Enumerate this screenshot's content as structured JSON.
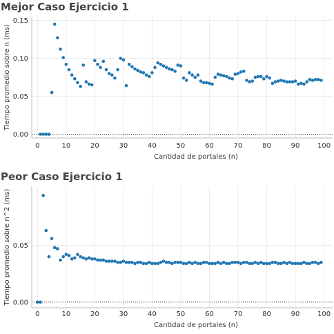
{
  "colors": {
    "point": "#1f77b4",
    "grid": "#ebebeb",
    "zero_line": "#333333",
    "axis": "#bbbbbb"
  },
  "chart_data": [
    {
      "type": "scatter",
      "title": "Mejor Caso Ejercicio 1",
      "xlabel": "Cantidad de portales (n)",
      "ylabel": "Tiempo promedio sobre n (ms)",
      "xlim": [
        -2,
        103
      ],
      "ylim": [
        -0.005,
        0.155
      ],
      "xticks": [
        0,
        10,
        20,
        30,
        40,
        50,
        60,
        70,
        80,
        90,
        100
      ],
      "yticks": [
        0.0,
        0.05,
        0.1,
        0.15
      ],
      "ytick_labels": [
        "0.00",
        "0.05",
        "0.10",
        "0.15"
      ],
      "zero_line": "dotted",
      "grid": true,
      "x": [
        1,
        2,
        3,
        4,
        5,
        6,
        7,
        8,
        9,
        10,
        11,
        12,
        13,
        14,
        15,
        16,
        17,
        18,
        19,
        20,
        21,
        22,
        23,
        24,
        25,
        26,
        27,
        28,
        29,
        30,
        31,
        32,
        33,
        34,
        35,
        36,
        37,
        38,
        39,
        40,
        41,
        42,
        43,
        44,
        45,
        46,
        47,
        48,
        49,
        50,
        51,
        52,
        53,
        54,
        55,
        56,
        57,
        58,
        59,
        60,
        61,
        62,
        63,
        64,
        65,
        66,
        67,
        68,
        69,
        70,
        71,
        72,
        73,
        74,
        75,
        76,
        77,
        78,
        79,
        80,
        81,
        82,
        83,
        84,
        85,
        86,
        87,
        88,
        89,
        90,
        91,
        92,
        93,
        94,
        95,
        96,
        97,
        98,
        99
      ],
      "y": [
        0.0,
        0.0,
        0.0,
        0.0,
        0.055,
        0.145,
        0.127,
        0.112,
        0.101,
        0.092,
        0.085,
        0.078,
        0.073,
        0.068,
        0.063,
        0.091,
        0.069,
        0.066,
        0.065,
        0.097,
        0.092,
        0.088,
        0.096,
        0.085,
        0.08,
        0.078,
        0.074,
        0.085,
        0.1,
        0.098,
        0.064,
        0.092,
        0.089,
        0.086,
        0.084,
        0.082,
        0.081,
        0.078,
        0.076,
        0.081,
        0.088,
        0.094,
        0.092,
        0.09,
        0.088,
        0.086,
        0.085,
        0.083,
        0.091,
        0.09,
        0.074,
        0.071,
        0.081,
        0.078,
        0.075,
        0.078,
        0.07,
        0.068,
        0.068,
        0.067,
        0.066,
        0.075,
        0.079,
        0.078,
        0.077,
        0.076,
        0.074,
        0.073,
        0.079,
        0.08,
        0.082,
        0.083,
        0.071,
        0.069,
        0.07,
        0.075,
        0.076,
        0.076,
        0.073,
        0.076,
        0.074,
        0.067,
        0.069,
        0.07,
        0.071,
        0.07,
        0.069,
        0.069,
        0.069,
        0.07,
        0.066,
        0.067,
        0.066,
        0.069,
        0.072,
        0.071,
        0.072,
        0.072,
        0.071
      ]
    },
    {
      "type": "scatter",
      "title": "Peor Caso Ejercicio 1",
      "xlabel": "Cantidad de portales (n)",
      "ylabel": "Tiempo promedio sobre n^2 (ms)",
      "xlim": [
        -2,
        103
      ],
      "ylim": [
        -0.005,
        0.102
      ],
      "xticks": [
        0,
        10,
        20,
        30,
        40,
        50,
        60,
        70,
        80,
        90,
        100
      ],
      "yticks": [
        0.0,
        0.05
      ],
      "ytick_labels": [
        "0.00",
        "0.05"
      ],
      "zero_line": "dotted",
      "grid": true,
      "x": [
        0,
        1,
        2,
        3,
        4,
        5,
        6,
        7,
        8,
        9,
        10,
        11,
        12,
        13,
        14,
        15,
        16,
        17,
        18,
        19,
        20,
        21,
        22,
        23,
        24,
        25,
        26,
        27,
        28,
        29,
        30,
        31,
        32,
        33,
        34,
        35,
        36,
        37,
        38,
        39,
        40,
        41,
        42,
        43,
        44,
        45,
        46,
        47,
        48,
        49,
        50,
        51,
        52,
        53,
        54,
        55,
        56,
        57,
        58,
        59,
        60,
        61,
        62,
        63,
        64,
        65,
        66,
        67,
        68,
        69,
        70,
        71,
        72,
        73,
        74,
        75,
        76,
        77,
        78,
        79,
        80,
        81,
        82,
        83,
        84,
        85,
        86,
        87,
        88,
        89,
        90,
        91,
        92,
        93,
        94,
        95,
        96,
        97,
        98,
        99
      ],
      "y": [
        0.0,
        0.0,
        0.094,
        0.063,
        0.04,
        0.056,
        0.048,
        0.047,
        0.037,
        0.04,
        0.042,
        0.041,
        0.038,
        0.039,
        0.042,
        0.04,
        0.039,
        0.038,
        0.039,
        0.038,
        0.038,
        0.037,
        0.037,
        0.037,
        0.036,
        0.036,
        0.036,
        0.036,
        0.035,
        0.035,
        0.036,
        0.035,
        0.035,
        0.035,
        0.034,
        0.035,
        0.035,
        0.034,
        0.034,
        0.035,
        0.034,
        0.034,
        0.034,
        0.035,
        0.036,
        0.035,
        0.035,
        0.034,
        0.035,
        0.035,
        0.035,
        0.034,
        0.034,
        0.035,
        0.034,
        0.035,
        0.034,
        0.034,
        0.035,
        0.035,
        0.034,
        0.034,
        0.034,
        0.035,
        0.034,
        0.035,
        0.034,
        0.034,
        0.035,
        0.035,
        0.035,
        0.034,
        0.035,
        0.035,
        0.034,
        0.034,
        0.035,
        0.034,
        0.035,
        0.034,
        0.034,
        0.034,
        0.035,
        0.035,
        0.034,
        0.034,
        0.035,
        0.034,
        0.035,
        0.034,
        0.034,
        0.034,
        0.034,
        0.035,
        0.034,
        0.034,
        0.035,
        0.035,
        0.034,
        0.035
      ]
    }
  ]
}
